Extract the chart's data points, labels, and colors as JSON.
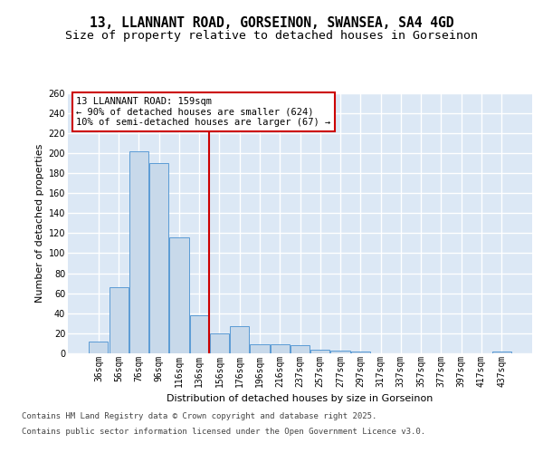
{
  "title_line1": "13, LLANNANT ROAD, GORSEINON, SWANSEA, SA4 4GD",
  "title_line2": "Size of property relative to detached houses in Gorseinon",
  "xlabel": "Distribution of detached houses by size in Gorseinon",
  "ylabel": "Number of detached properties",
  "categories": [
    "36sqm",
    "56sqm",
    "76sqm",
    "96sqm",
    "116sqm",
    "136sqm",
    "156sqm",
    "176sqm",
    "196sqm",
    "216sqm",
    "237sqm",
    "257sqm",
    "277sqm",
    "297sqm",
    "317sqm",
    "337sqm",
    "357sqm",
    "377sqm",
    "397sqm",
    "417sqm",
    "437sqm"
  ],
  "values": [
    12,
    66,
    202,
    190,
    116,
    38,
    20,
    27,
    9,
    9,
    8,
    4,
    3,
    2,
    0,
    0,
    0,
    0,
    0,
    0,
    2
  ],
  "bar_color": "#c8d9ea",
  "bar_edge_color": "#5b9bd5",
  "vline_color": "#cc0000",
  "vline_index": 6,
  "annotation_text": "13 LLANNANT ROAD: 159sqm\n← 90% of detached houses are smaller (624)\n10% of semi-detached houses are larger (67) →",
  "annotation_box_edgecolor": "#cc0000",
  "ylim": [
    0,
    260
  ],
  "yticks": [
    0,
    20,
    40,
    60,
    80,
    100,
    120,
    140,
    160,
    180,
    200,
    220,
    240,
    260
  ],
  "footer_line1": "Contains HM Land Registry data © Crown copyright and database right 2025.",
  "footer_line2": "Contains public sector information licensed under the Open Government Licence v3.0.",
  "plot_bg_color": "#dce8f5",
  "fig_bg_color": "#ffffff",
  "grid_color": "#ffffff",
  "title_fontsize": 10.5,
  "subtitle_fontsize": 9.5,
  "axis_label_fontsize": 8,
  "tick_fontsize": 7,
  "ann_fontsize": 7.5,
  "footer_fontsize": 6.5
}
